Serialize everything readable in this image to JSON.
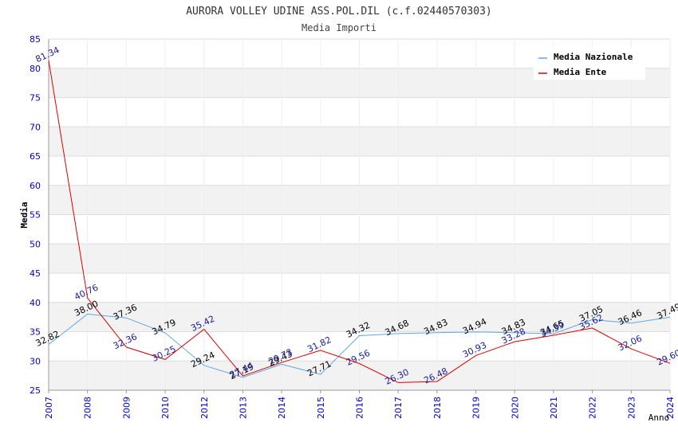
{
  "chart_data": {
    "type": "line",
    "title": "AURORA VOLLEY UDINE ASS.POL.DIL (c.f.02440570303)",
    "subtitle": "Media Importi",
    "ylabel": "Media",
    "xlabel": "Anno",
    "ylim": [
      25,
      85
    ],
    "yticks": [
      25,
      30,
      35,
      40,
      45,
      50,
      55,
      60,
      65,
      70,
      75,
      80,
      85
    ],
    "categories": [
      "2007",
      "2008",
      "2009",
      "2010",
      "2012",
      "2013",
      "2014",
      "2015",
      "2016",
      "2017",
      "2018",
      "2019",
      "2020",
      "2021",
      "2022",
      "2023",
      "2024"
    ],
    "grid": true,
    "legend_position": "top-right",
    "series": [
      {
        "name": "Media Nazionale",
        "color": "#5fa8e0",
        "label_color": "#000000",
        "labels": [
          "32.82",
          "38.00",
          "37.36",
          "34.79",
          "29.24",
          "27.19",
          "29.43",
          "27.71",
          "34.32",
          "34.68",
          "34.83",
          "34.94",
          "34.83",
          "34.65",
          "37.05",
          "36.46",
          "37.49"
        ],
        "values": [
          32.82,
          38.0,
          37.36,
          34.79,
          29.24,
          27.19,
          29.43,
          27.71,
          34.32,
          34.68,
          34.83,
          34.94,
          34.83,
          34.65,
          37.05,
          36.46,
          37.49
        ]
      },
      {
        "name": "Media Ente",
        "color": "#dd0000",
        "label_color": "#1a1a99",
        "labels": [
          "81.34",
          "40.76",
          "32.36",
          "30.25",
          "35.42",
          "27.44",
          "29.73",
          "31.82",
          "29.56",
          "26.30",
          "26.48",
          "30.93",
          "33.28",
          "34.39",
          "35.62",
          "32.06",
          "29.60"
        ],
        "values": [
          81.34,
          40.76,
          32.36,
          30.25,
          35.42,
          27.44,
          29.73,
          31.82,
          29.56,
          26.3,
          26.48,
          30.93,
          33.28,
          34.39,
          35.62,
          32.06,
          29.6
        ]
      }
    ]
  }
}
